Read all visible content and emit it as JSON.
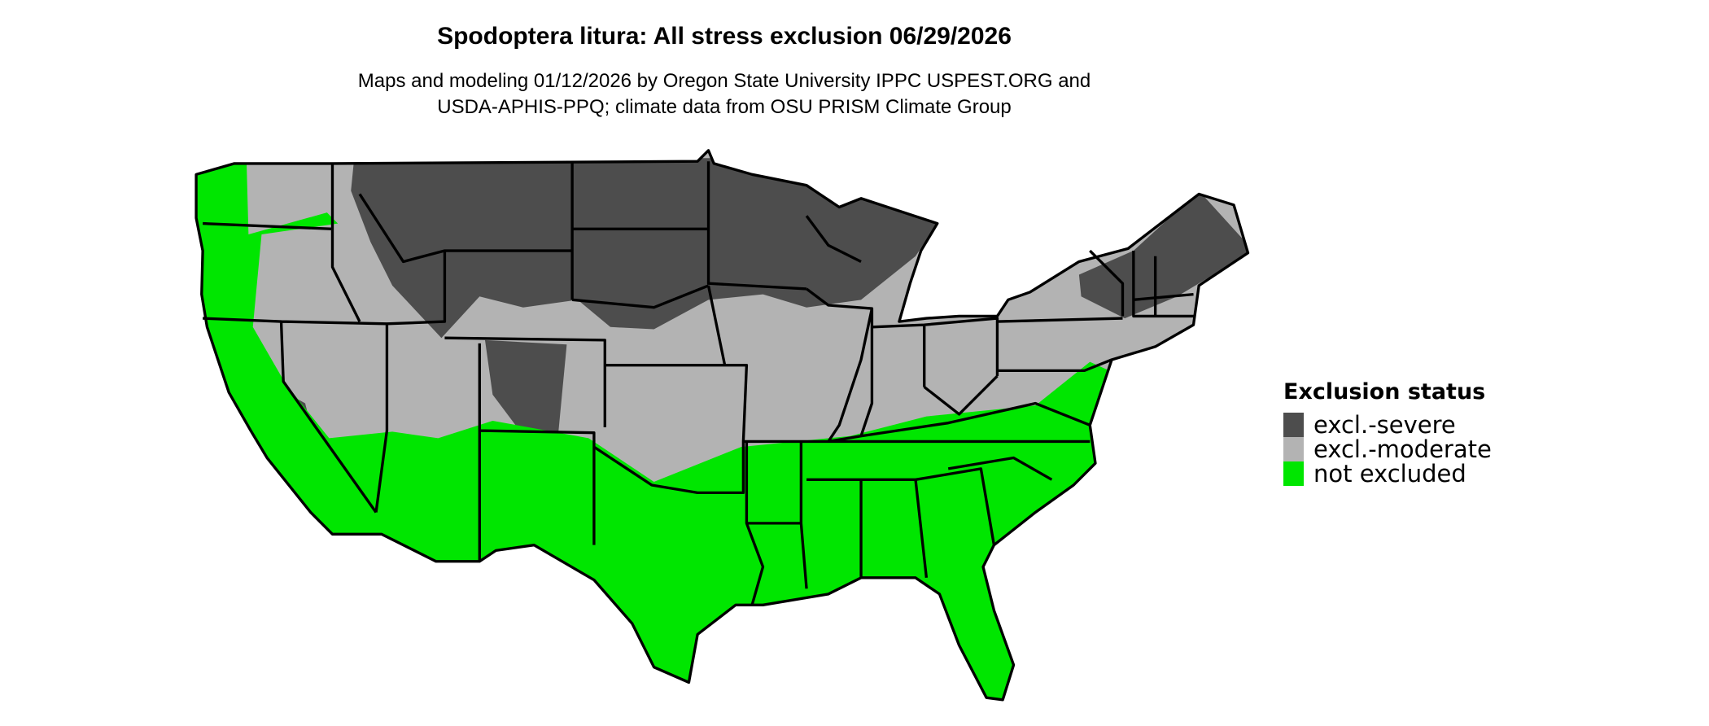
{
  "title": "Spodoptera litura: All stress exclusion 06/29/2026",
  "subtitle_line1": "Maps and modeling 01/12/2026 by Oregon State University IPPC USPEST.ORG and",
  "subtitle_line2": "USDA-APHIS-PPQ; climate data from OSU PRISM Climate Group",
  "legend": {
    "title": "Exclusion status",
    "items": [
      {
        "label": "excl.-severe",
        "color": "#4d4d4d"
      },
      {
        "label": "excl.-moderate",
        "color": "#b3b3b3"
      },
      {
        "label": "not excluded",
        "color": "#00e600"
      }
    ]
  },
  "map": {
    "region": "Conterminous United States",
    "border_color": "#000000"
  }
}
